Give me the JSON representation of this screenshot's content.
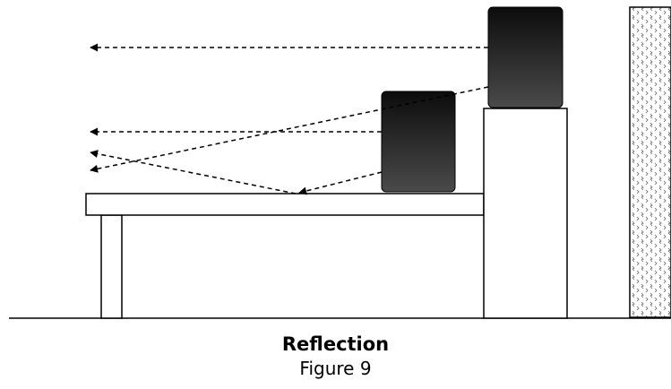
{
  "caption": {
    "title": "Reflection",
    "subtitle": "Figure 9"
  },
  "colors": {
    "line": "#000000",
    "speaker_top": "#0c0c0c",
    "speaker_bottom": "#4a4a4a",
    "wall_pattern": "#666666",
    "background": "#ffffff"
  },
  "elements": {
    "floor": "floor-line",
    "table": "table",
    "stand": "speaker-stand",
    "wall": "wall",
    "speakers": [
      "upper-speaker",
      "lower-speaker"
    ],
    "sound_paths": [
      "direct-path-upper",
      "direct-path-lower",
      "reflected-path-upper",
      "reflected-path-lower-incident",
      "reflected-path-lower-bounce"
    ]
  }
}
